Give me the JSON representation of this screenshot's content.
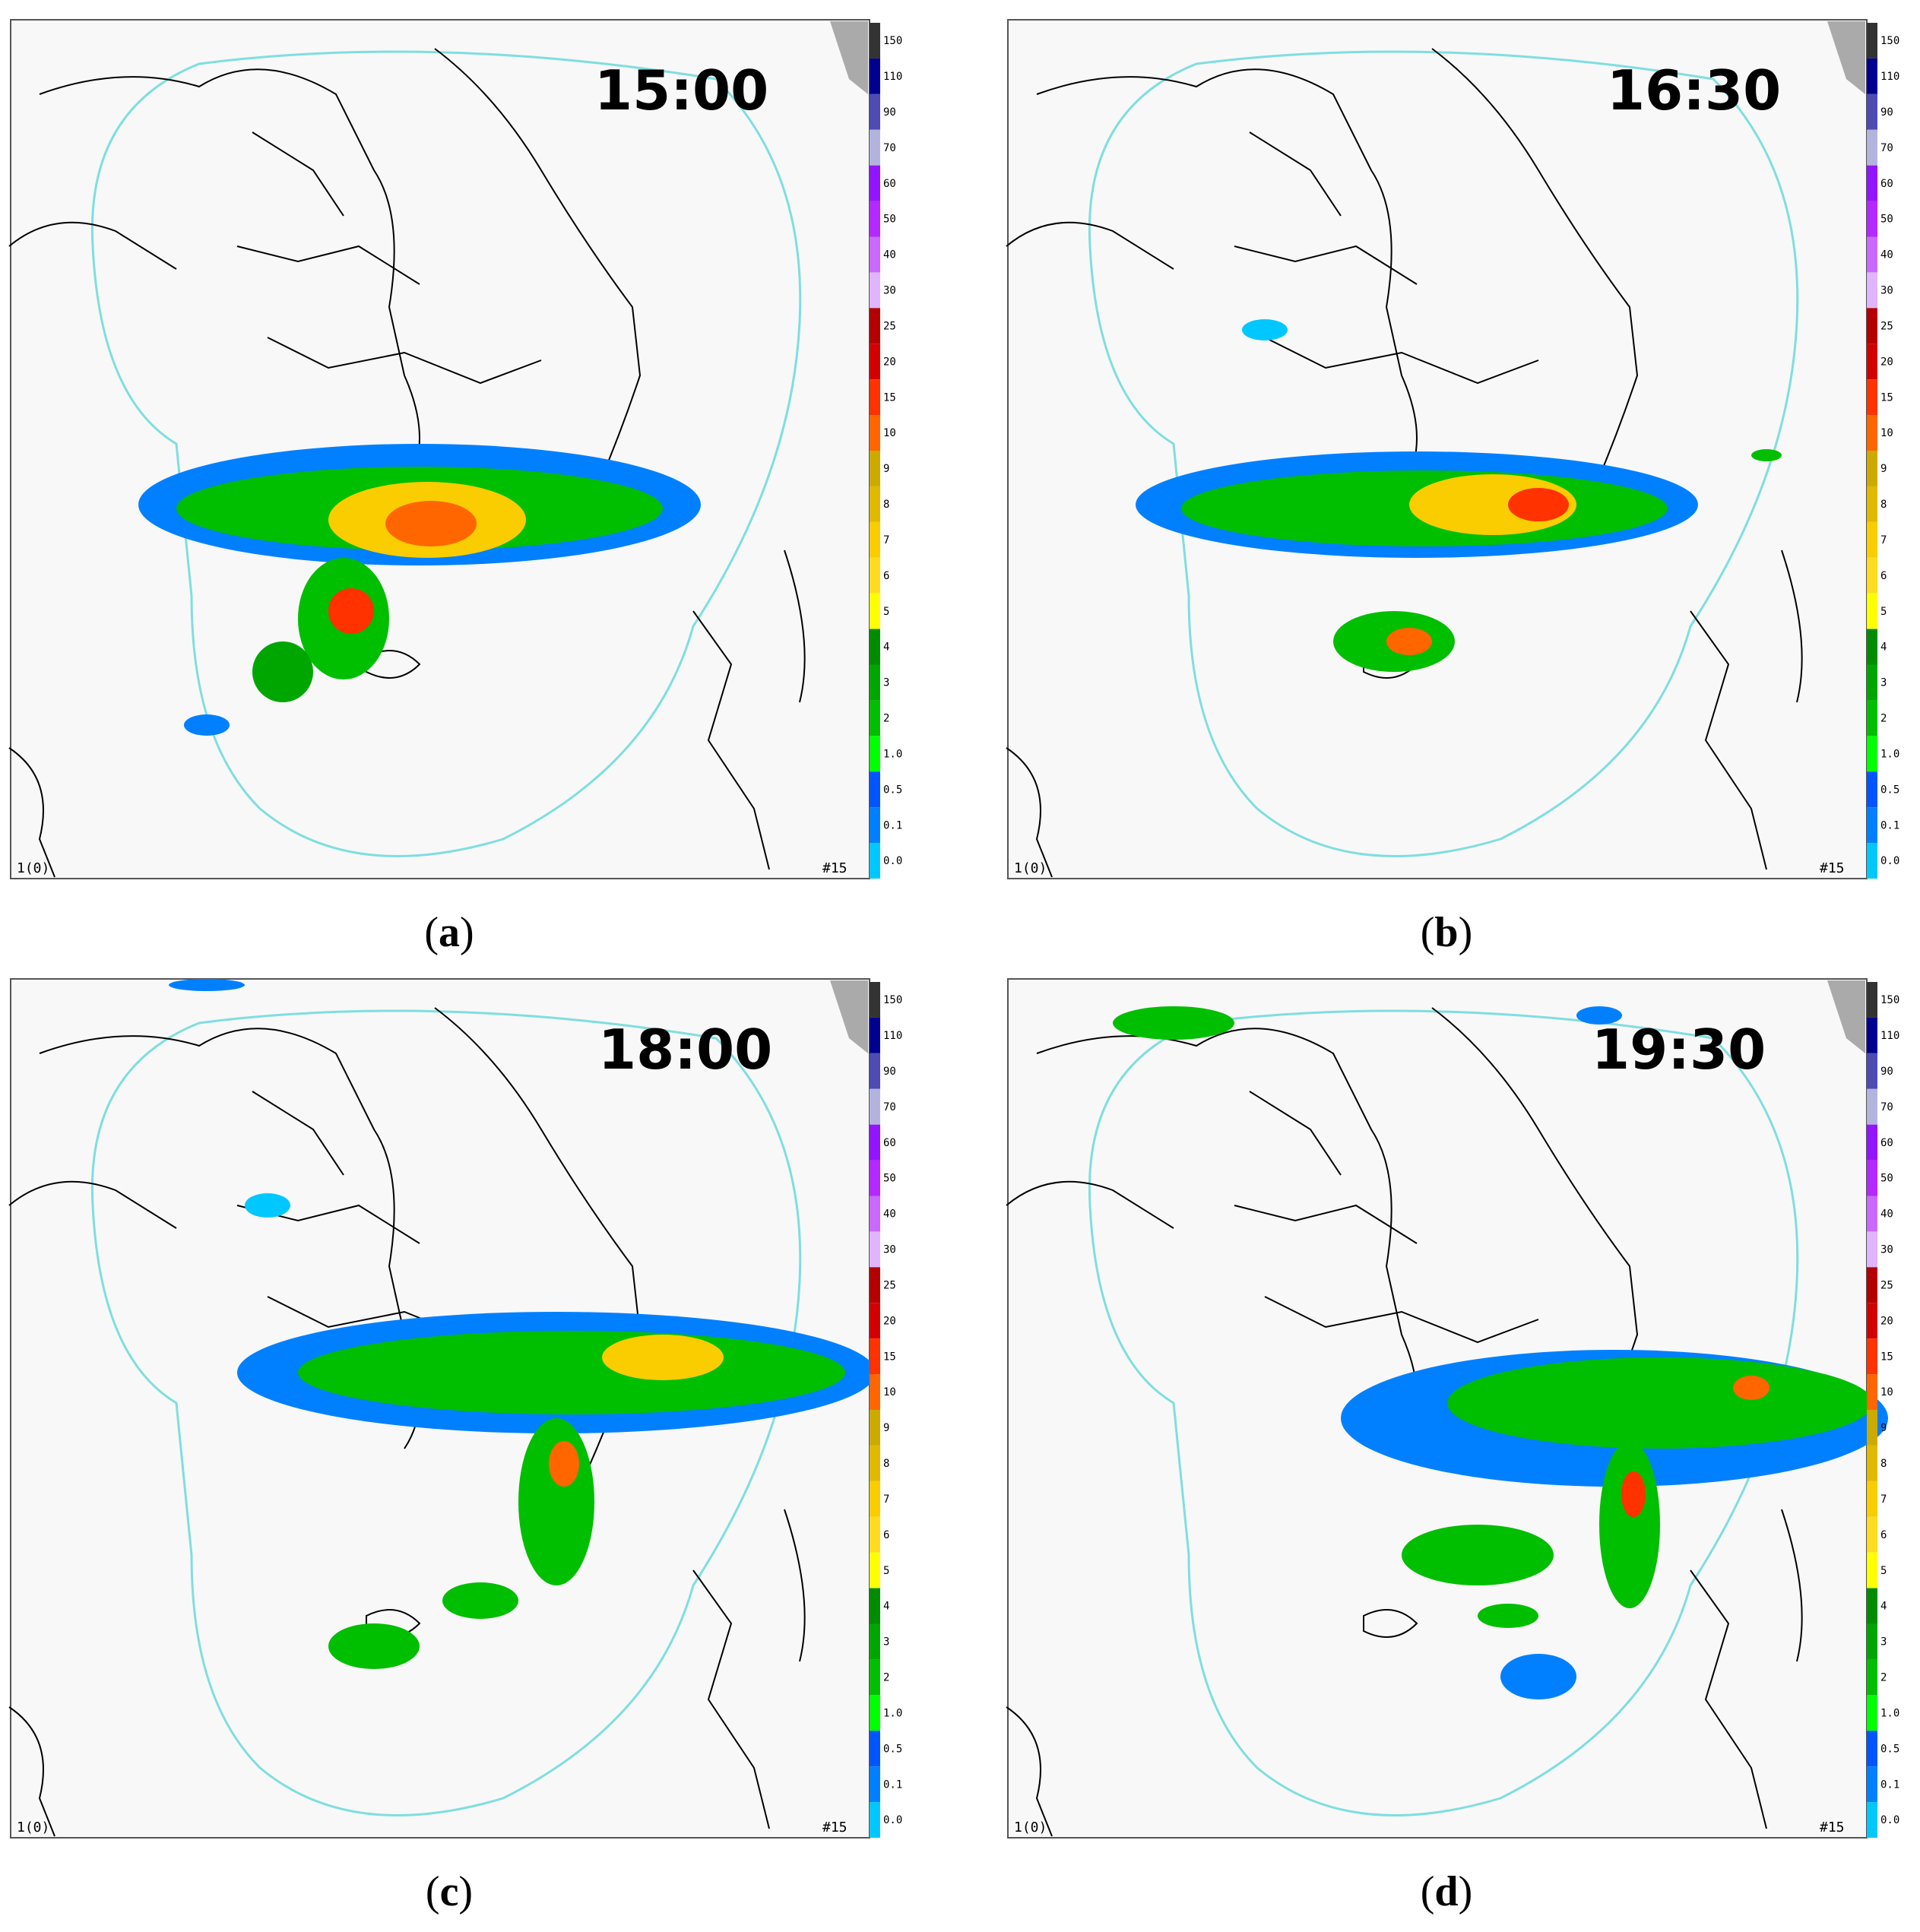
{
  "colorbar": {
    "labels": [
      "150",
      "110",
      "90",
      "70",
      "60",
      "50",
      "40",
      "30",
      "25",
      "20",
      "15",
      "10",
      "9",
      "8",
      "7",
      "6",
      "5",
      "4",
      "3",
      "2",
      "1.0",
      "0.5",
      "0.1",
      "0.0"
    ],
    "colors": [
      "#333333",
      "#000090",
      "#4c4cb3",
      "#b3b4de",
      "#9314ff",
      "#b329ff",
      "#c969ff",
      "#e0b4ff",
      "#b40000",
      "#d20000",
      "#ff3200",
      "#ff6600",
      "#ccaa00",
      "#e0b900",
      "#f9cd00",
      "#ffdc1f",
      "#ffff00",
      "#008c00",
      "#00a600",
      "#00be00",
      "#00ff00",
      "#0055ff",
      "#0080ff",
      "#00c8ff"
    ]
  },
  "panels": [
    {
      "time": "15:00",
      "letter": "a",
      "corner_left": "1(0)",
      "corner_right": "#15"
    },
    {
      "time": "16:30",
      "letter": "b",
      "corner_left": "1(0)",
      "corner_right": "#15"
    },
    {
      "time": "18:00",
      "letter": "c",
      "corner_left": "1(0)",
      "corner_right": "#15"
    },
    {
      "time": "19:30",
      "letter": "d",
      "corner_left": "1(0)",
      "corner_right": "#15"
    }
  ],
  "colors": {
    "radar_range": "#7fdedf",
    "coast": "#000000",
    "land_corner": "#aaaaaa",
    "map_bg": "#f8f8f8"
  }
}
